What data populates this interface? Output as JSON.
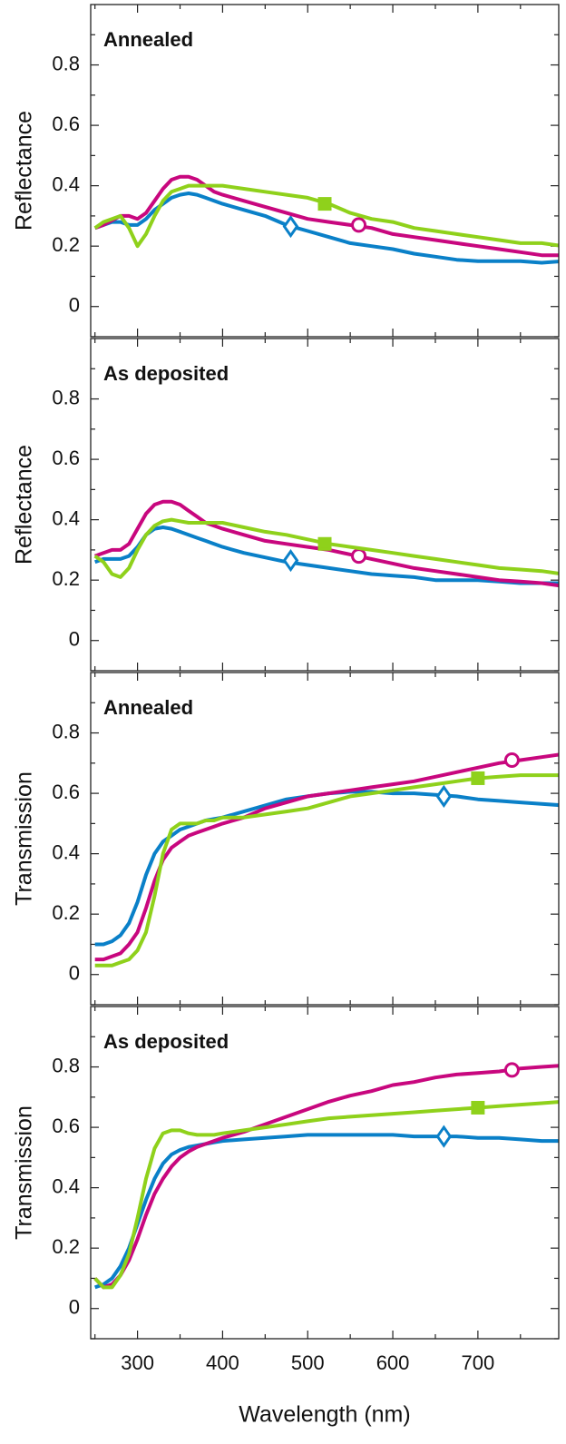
{
  "chart_data": [
    {
      "type": "line",
      "title": "Annealed",
      "ylabel": "Reflectance",
      "x": [
        250,
        260,
        270,
        280,
        290,
        300,
        310,
        320,
        330,
        340,
        350,
        360,
        370,
        380,
        390,
        400,
        425,
        450,
        475,
        500,
        525,
        550,
        575,
        600,
        625,
        650,
        675,
        700,
        725,
        750,
        775,
        800
      ],
      "xlim": [
        245,
        795
      ],
      "xticks": [
        300,
        400,
        500,
        600,
        700
      ],
      "ylim": [
        -0.1,
        1.0
      ],
      "yticks": [
        0,
        0.2,
        0.4,
        0.6,
        0.8
      ],
      "series": [
        {
          "color": "#0a80c8",
          "marker": {
            "shape": "diamond",
            "x": 480,
            "y": 0.265
          },
          "values": [
            0.26,
            0.27,
            0.28,
            0.28,
            0.27,
            0.27,
            0.29,
            0.32,
            0.34,
            0.36,
            0.37,
            0.375,
            0.37,
            0.36,
            0.35,
            0.34,
            0.32,
            0.3,
            0.27,
            0.25,
            0.23,
            0.21,
            0.2,
            0.19,
            0.175,
            0.165,
            0.155,
            0.15,
            0.15,
            0.15,
            0.145,
            0.15
          ]
        },
        {
          "color": "#c8077e",
          "marker": {
            "shape": "circle",
            "x": 560,
            "y": 0.27
          },
          "values": [
            0.26,
            0.27,
            0.285,
            0.3,
            0.3,
            0.29,
            0.31,
            0.35,
            0.39,
            0.42,
            0.43,
            0.43,
            0.42,
            0.4,
            0.38,
            0.37,
            0.35,
            0.33,
            0.31,
            0.29,
            0.28,
            0.27,
            0.26,
            0.24,
            0.23,
            0.22,
            0.21,
            0.2,
            0.19,
            0.18,
            0.17,
            0.17
          ]
        },
        {
          "color": "#8fd11b",
          "marker": {
            "shape": "square",
            "x": 520,
            "y": 0.34
          },
          "values": [
            0.26,
            0.28,
            0.29,
            0.3,
            0.26,
            0.2,
            0.24,
            0.3,
            0.35,
            0.38,
            0.39,
            0.4,
            0.4,
            0.4,
            0.4,
            0.4,
            0.39,
            0.38,
            0.37,
            0.36,
            0.34,
            0.31,
            0.29,
            0.28,
            0.26,
            0.25,
            0.24,
            0.23,
            0.22,
            0.21,
            0.21,
            0.2
          ]
        }
      ]
    },
    {
      "type": "line",
      "title": "As deposited",
      "ylabel": "Reflectance",
      "x": [
        250,
        260,
        270,
        280,
        290,
        300,
        310,
        320,
        330,
        340,
        350,
        360,
        370,
        380,
        390,
        400,
        425,
        450,
        475,
        500,
        525,
        550,
        575,
        600,
        625,
        650,
        675,
        700,
        725,
        750,
        775,
        800
      ],
      "xlim": [
        245,
        795
      ],
      "xticks": [
        300,
        400,
        500,
        600,
        700
      ],
      "ylim": [
        -0.1,
        1.0
      ],
      "yticks": [
        0,
        0.2,
        0.4,
        0.6,
        0.8
      ],
      "series": [
        {
          "color": "#0a80c8",
          "marker": {
            "shape": "diamond",
            "x": 480,
            "y": 0.265
          },
          "values": [
            0.26,
            0.27,
            0.27,
            0.27,
            0.28,
            0.31,
            0.35,
            0.37,
            0.375,
            0.37,
            0.36,
            0.35,
            0.34,
            0.33,
            0.32,
            0.31,
            0.29,
            0.275,
            0.26,
            0.25,
            0.24,
            0.23,
            0.22,
            0.215,
            0.21,
            0.2,
            0.2,
            0.2,
            0.195,
            0.19,
            0.19,
            0.19
          ]
        },
        {
          "color": "#c8077e",
          "marker": {
            "shape": "circle",
            "x": 560,
            "y": 0.28
          },
          "values": [
            0.28,
            0.29,
            0.3,
            0.3,
            0.32,
            0.37,
            0.42,
            0.45,
            0.46,
            0.46,
            0.45,
            0.43,
            0.41,
            0.39,
            0.38,
            0.37,
            0.35,
            0.33,
            0.32,
            0.31,
            0.3,
            0.285,
            0.27,
            0.255,
            0.24,
            0.23,
            0.22,
            0.21,
            0.2,
            0.195,
            0.19,
            0.18
          ]
        },
        {
          "color": "#8fd11b",
          "marker": {
            "shape": "square",
            "x": 520,
            "y": 0.32
          },
          "values": [
            0.28,
            0.26,
            0.22,
            0.21,
            0.24,
            0.3,
            0.35,
            0.38,
            0.395,
            0.4,
            0.395,
            0.39,
            0.39,
            0.39,
            0.39,
            0.39,
            0.375,
            0.36,
            0.35,
            0.335,
            0.32,
            0.31,
            0.3,
            0.29,
            0.28,
            0.27,
            0.26,
            0.25,
            0.24,
            0.235,
            0.23,
            0.22
          ]
        }
      ]
    },
    {
      "type": "line",
      "title": "Annealed",
      "ylabel": "Transmission",
      "x": [
        250,
        260,
        270,
        280,
        290,
        300,
        310,
        320,
        330,
        340,
        350,
        360,
        370,
        380,
        390,
        400,
        425,
        450,
        475,
        500,
        525,
        550,
        575,
        600,
        625,
        650,
        675,
        700,
        725,
        750,
        775,
        800
      ],
      "xlim": [
        245,
        795
      ],
      "xticks": [
        300,
        400,
        500,
        600,
        700
      ],
      "ylim": [
        -0.1,
        1.0
      ],
      "yticks": [
        0,
        0.2,
        0.4,
        0.6,
        0.8
      ],
      "series": [
        {
          "color": "#0a80c8",
          "marker": {
            "shape": "diamond",
            "x": 660,
            "y": 0.59
          },
          "values": [
            0.1,
            0.1,
            0.11,
            0.13,
            0.17,
            0.24,
            0.33,
            0.4,
            0.44,
            0.46,
            0.48,
            0.49,
            0.5,
            0.51,
            0.515,
            0.52,
            0.54,
            0.56,
            0.58,
            0.59,
            0.6,
            0.605,
            0.605,
            0.6,
            0.6,
            0.595,
            0.59,
            0.58,
            0.575,
            0.57,
            0.565,
            0.56
          ]
        },
        {
          "color": "#c8077e",
          "marker": {
            "shape": "circle",
            "x": 740,
            "y": 0.71
          },
          "values": [
            0.05,
            0.05,
            0.06,
            0.07,
            0.1,
            0.14,
            0.22,
            0.31,
            0.38,
            0.42,
            0.44,
            0.46,
            0.47,
            0.48,
            0.49,
            0.5,
            0.52,
            0.55,
            0.57,
            0.59,
            0.6,
            0.61,
            0.62,
            0.63,
            0.64,
            0.655,
            0.67,
            0.685,
            0.7,
            0.71,
            0.72,
            0.73
          ]
        },
        {
          "color": "#8fd11b",
          "marker": {
            "shape": "square",
            "x": 700,
            "y": 0.65
          },
          "values": [
            0.03,
            0.03,
            0.03,
            0.04,
            0.05,
            0.08,
            0.14,
            0.26,
            0.4,
            0.48,
            0.5,
            0.5,
            0.5,
            0.51,
            0.51,
            0.52,
            0.52,
            0.53,
            0.54,
            0.55,
            0.57,
            0.59,
            0.6,
            0.61,
            0.62,
            0.63,
            0.64,
            0.65,
            0.655,
            0.66,
            0.66,
            0.66
          ]
        }
      ]
    },
    {
      "type": "line",
      "title": "As deposited",
      "ylabel": "Transmission",
      "xlabel": "Wavelength (nm)",
      "x": [
        250,
        260,
        270,
        280,
        290,
        300,
        310,
        320,
        330,
        340,
        350,
        360,
        370,
        380,
        390,
        400,
        425,
        450,
        475,
        500,
        525,
        550,
        575,
        600,
        625,
        650,
        675,
        700,
        725,
        750,
        775,
        800
      ],
      "xlim": [
        245,
        795
      ],
      "xticks": [
        300,
        400,
        500,
        600,
        700
      ],
      "ylim": [
        -0.1,
        1.0
      ],
      "yticks": [
        0,
        0.2,
        0.4,
        0.6,
        0.8
      ],
      "series": [
        {
          "color": "#0a80c8",
          "marker": {
            "shape": "diamond",
            "x": 660,
            "y": 0.57
          },
          "values": [
            0.07,
            0.08,
            0.1,
            0.14,
            0.2,
            0.28,
            0.36,
            0.43,
            0.48,
            0.51,
            0.525,
            0.535,
            0.54,
            0.545,
            0.55,
            0.555,
            0.56,
            0.565,
            0.57,
            0.575,
            0.575,
            0.575,
            0.575,
            0.575,
            0.57,
            0.57,
            0.57,
            0.565,
            0.565,
            0.56,
            0.555,
            0.555
          ]
        },
        {
          "color": "#c8077e",
          "marker": {
            "shape": "circle",
            "x": 740,
            "y": 0.79
          },
          "values": [
            0.1,
            0.07,
            0.08,
            0.11,
            0.16,
            0.23,
            0.31,
            0.38,
            0.43,
            0.47,
            0.5,
            0.52,
            0.535,
            0.545,
            0.555,
            0.565,
            0.585,
            0.61,
            0.635,
            0.66,
            0.685,
            0.705,
            0.72,
            0.74,
            0.75,
            0.765,
            0.775,
            0.78,
            0.785,
            0.795,
            0.8,
            0.805
          ]
        },
        {
          "color": "#8fd11b",
          "marker": {
            "shape": "square",
            "x": 700,
            "y": 0.665
          },
          "values": [
            0.1,
            0.07,
            0.07,
            0.11,
            0.18,
            0.3,
            0.43,
            0.53,
            0.58,
            0.59,
            0.59,
            0.58,
            0.575,
            0.575,
            0.575,
            0.58,
            0.59,
            0.6,
            0.61,
            0.62,
            0.63,
            0.635,
            0.64,
            0.645,
            0.65,
            0.655,
            0.66,
            0.665,
            0.67,
            0.675,
            0.68,
            0.685
          ]
        }
      ]
    }
  ]
}
